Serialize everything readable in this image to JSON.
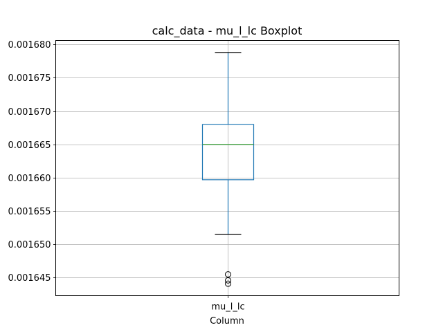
{
  "chart_data": {
    "type": "boxplot",
    "title": "calc_data - mu_l_lc Boxplot",
    "xlabel": "Column",
    "ylabel": "",
    "categories": [
      "mu_l_lc"
    ],
    "ylim": [
      0.0016423,
      0.0016806
    ],
    "yticks": [
      0.001645,
      0.00165,
      0.001655,
      0.00166,
      0.001665,
      0.00167,
      0.001675,
      0.00168
    ],
    "ytick_labels": [
      "0.001645",
      "0.001650",
      "0.001655",
      "0.001660",
      "0.001665",
      "0.001670",
      "0.001675",
      "0.001680"
    ],
    "grid": true,
    "boxes": [
      {
        "category": "mu_l_lc",
        "whisker_low": 0.0016515,
        "q1": 0.0016597,
        "median": 0.001665,
        "q3": 0.001668,
        "whisker_high": 0.0016788,
        "outliers": [
          0.0016455,
          0.0016446,
          0.0016441
        ]
      }
    ],
    "colors": {
      "box": "#1f77b4",
      "median": "#2ca02c",
      "cap": "#000000",
      "outlier": "#000000",
      "grid": "#b0b0b0"
    }
  }
}
